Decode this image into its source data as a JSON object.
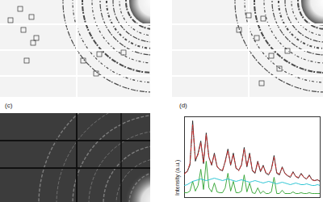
{
  "labels": {
    "c": "(c)",
    "d": "(d)"
  },
  "chart_data": {
    "type": "line",
    "ylabel": "Intensity (a.u.)",
    "tick_labels": false,
    "xlim": [
      0,
      100
    ],
    "ylim": [
      0,
      1
    ],
    "x": [
      0,
      2,
      4,
      6,
      8,
      10,
      12,
      14,
      16,
      18,
      20,
      22,
      24,
      26,
      28,
      30,
      32,
      34,
      36,
      38,
      40,
      42,
      44,
      46,
      48,
      50,
      52,
      54,
      56,
      58,
      60,
      62,
      64,
      66,
      68,
      70,
      72,
      74,
      76,
      78,
      80,
      82,
      84,
      86,
      88,
      90,
      92,
      94,
      96,
      98,
      100
    ],
    "series": [
      {
        "color": "#222222",
        "line_style": "solid",
        "values": [
          0.3,
          0.32,
          0.4,
          0.95,
          0.45,
          0.55,
          0.7,
          0.42,
          0.8,
          0.5,
          0.4,
          0.55,
          0.38,
          0.35,
          0.33,
          0.45,
          0.6,
          0.4,
          0.55,
          0.36,
          0.34,
          0.4,
          0.62,
          0.38,
          0.55,
          0.33,
          0.3,
          0.45,
          0.32,
          0.4,
          0.3,
          0.28,
          0.35,
          0.52,
          0.3,
          0.28,
          0.38,
          0.3,
          0.27,
          0.25,
          0.32,
          0.26,
          0.24,
          0.3,
          0.25,
          0.23,
          0.28,
          0.22,
          0.21,
          0.22,
          0.2
        ]
      },
      {
        "color": "#d62728",
        "line_style": "dashdot",
        "values": [
          0.29,
          0.33,
          0.42,
          0.9,
          0.47,
          0.53,
          0.68,
          0.44,
          0.78,
          0.49,
          0.41,
          0.53,
          0.39,
          0.34,
          0.34,
          0.44,
          0.58,
          0.41,
          0.53,
          0.37,
          0.33,
          0.41,
          0.6,
          0.39,
          0.53,
          0.34,
          0.31,
          0.44,
          0.33,
          0.39,
          0.31,
          0.29,
          0.34,
          0.5,
          0.31,
          0.29,
          0.37,
          0.3,
          0.27,
          0.26,
          0.31,
          0.26,
          0.25,
          0.29,
          0.25,
          0.23,
          0.27,
          0.22,
          0.21,
          0.22,
          0.2
        ]
      },
      {
        "color": "#2ca02c",
        "line_style": "solid",
        "values": [
          0.06,
          0.06,
          0.08,
          0.2,
          0.08,
          0.15,
          0.35,
          0.1,
          0.45,
          0.12,
          0.07,
          0.18,
          0.07,
          0.06,
          0.06,
          0.12,
          0.3,
          0.08,
          0.2,
          0.06,
          0.06,
          0.08,
          0.28,
          0.07,
          0.18,
          0.06,
          0.05,
          0.12,
          0.05,
          0.08,
          0.05,
          0.05,
          0.07,
          0.25,
          0.05,
          0.05,
          0.09,
          0.05,
          0.05,
          0.05,
          0.07,
          0.05,
          0.05,
          0.06,
          0.05,
          0.05,
          0.06,
          0.05,
          0.05,
          0.05,
          0.05
        ]
      },
      {
        "color": "#17becf",
        "line_style": "solid",
        "values": [
          0.15,
          0.16,
          0.18,
          0.2,
          0.21,
          0.22,
          0.23,
          0.22,
          0.21,
          0.22,
          0.23,
          0.24,
          0.23,
          0.22,
          0.21,
          0.22,
          0.23,
          0.22,
          0.21,
          0.2,
          0.21,
          0.22,
          0.21,
          0.2,
          0.19,
          0.2,
          0.21,
          0.2,
          0.19,
          0.18,
          0.19,
          0.2,
          0.19,
          0.18,
          0.17,
          0.18,
          0.19,
          0.18,
          0.17,
          0.16,
          0.17,
          0.18,
          0.17,
          0.16,
          0.16,
          0.17,
          0.16,
          0.15,
          0.15,
          0.16,
          0.15
        ]
      }
    ]
  }
}
